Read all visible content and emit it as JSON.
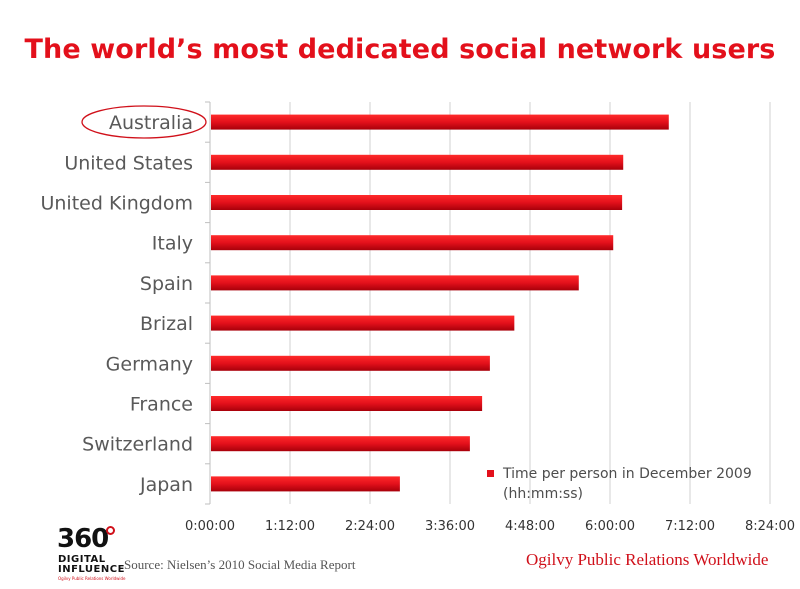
{
  "title": "The world’s most dedicated social network users",
  "chart_data": {
    "type": "bar",
    "orientation": "horizontal",
    "title": "The world’s most dedicated social network users",
    "categories": [
      "Australia",
      "United States",
      "United Kingdom",
      "Italy",
      "Spain",
      "Brizal",
      "Germany",
      "France",
      "Switzerland",
      "Japan"
    ],
    "series": [
      {
        "name": "Time per person in December 2009 (hh:mm:ss)",
        "values_hhmmss": [
          "6:52:00",
          "6:11:00",
          "6:10:00",
          "6:02:00",
          "5:31:00",
          "4:33:00",
          "4:11:00",
          "4:04:00",
          "3:53:00",
          "2:50:00"
        ],
        "values_minutes": [
          412,
          371,
          370,
          362,
          331,
          273,
          251,
          244,
          233,
          170
        ]
      }
    ],
    "x_ticks": [
      "0:00:00",
      "1:12:00",
      "2:24:00",
      "3:36:00",
      "4:48:00",
      "6:00:00",
      "7:12:00",
      "8:24:00"
    ],
    "xlim_minutes": [
      0,
      504
    ],
    "grid": "vertical",
    "highlighted_category": "Australia",
    "legend_position": "bottom-right",
    "bar_color": "#e3101b"
  },
  "legend": {
    "line1": "Time per person in December 2009",
    "line2": "(hh:mm:ss)"
  },
  "footer": {
    "logo_number": "360",
    "logo_line1": "DIGITAL",
    "logo_line2": "INFLUENCE",
    "logo_line3": "Ogilvy Public Relations Worldwide",
    "source": "Source: Nielsen’s 2010 Social Media Report",
    "company": "Ogilvy Public Relations Worldwide"
  }
}
